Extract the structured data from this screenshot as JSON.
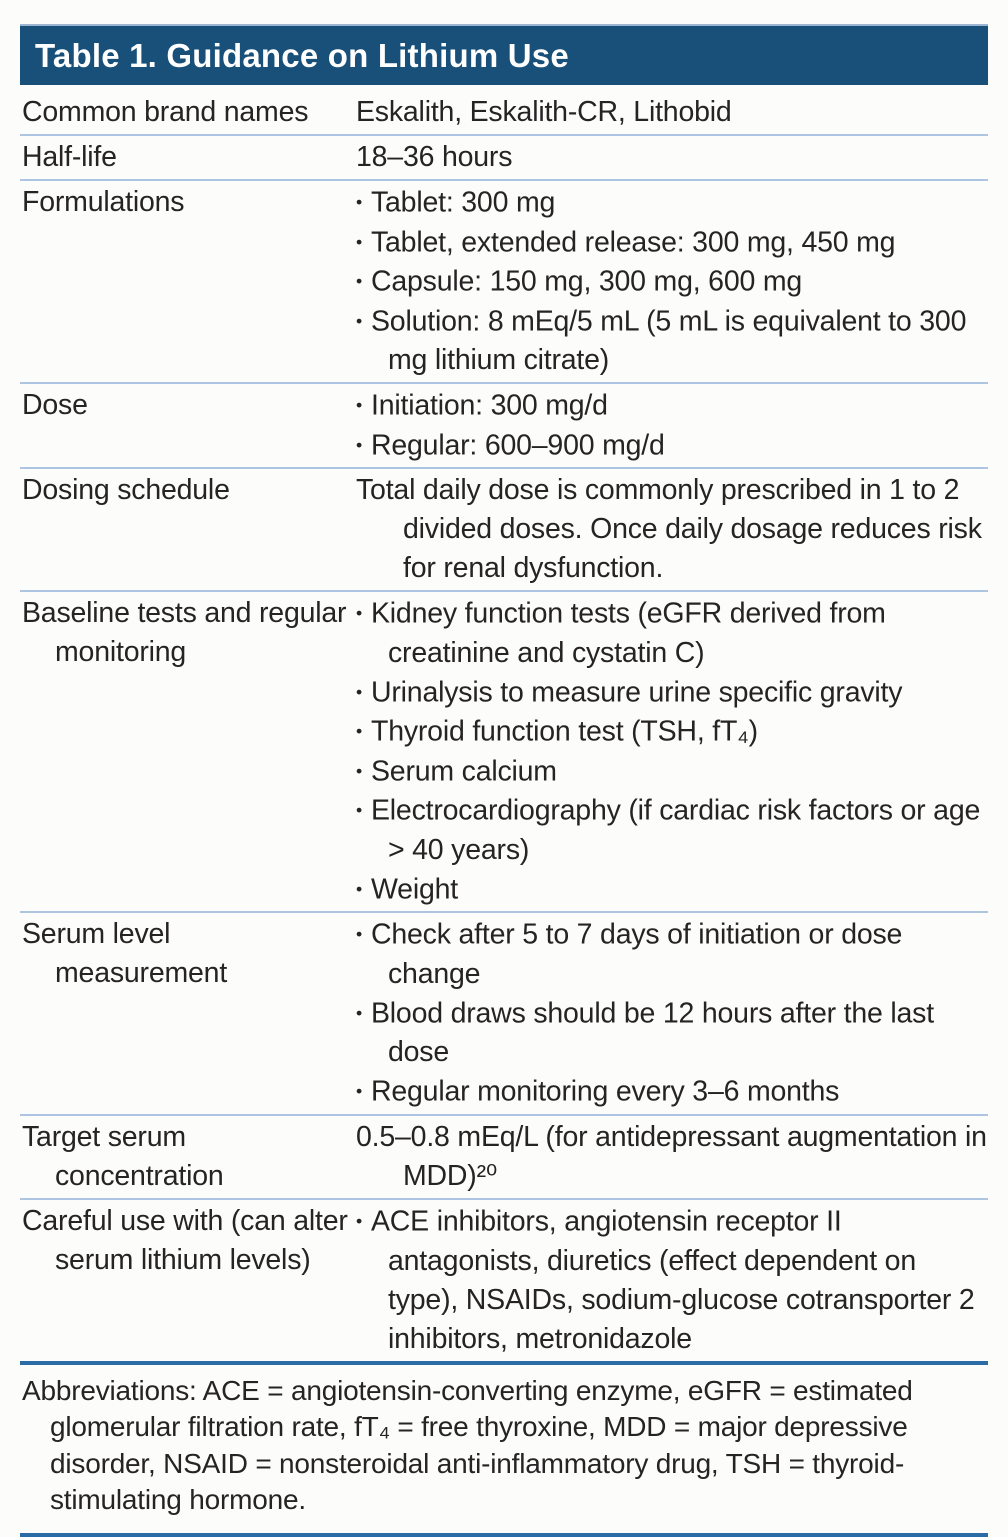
{
  "glyphs": {
    "bullet": "•"
  },
  "colors": {
    "header_bg": "#18507a",
    "header_text": "#ffffff",
    "body_text": "#262324",
    "row_divider": "#adc4e2",
    "section_rule": "#2c6ca6",
    "page_bg": "#fcfcfa"
  },
  "table": {
    "title": "Table 1. Guidance on Lithium Use",
    "rows": [
      {
        "label": "Common brand names",
        "type": "text",
        "text": "Eskalith, Eskalith-CR, Lithobid"
      },
      {
        "label": "Half-life",
        "type": "text",
        "text": "18–36 hours"
      },
      {
        "label": "Formulations",
        "type": "bullets",
        "items": [
          "Tablet: 300 mg",
          "Tablet, extended release: 300 mg, 450 mg",
          "Capsule: 150 mg, 300 mg, 600 mg",
          "Solution: 8 mEq/5 mL (5 mL is equivalent to 300 mg lithium citrate)"
        ]
      },
      {
        "label": "Dose",
        "type": "bullets",
        "items": [
          "Initiation: 300 mg/d",
          "Regular: 600–900 mg/d"
        ]
      },
      {
        "label": "Dosing schedule",
        "type": "text",
        "text": "Total daily dose is commonly prescribed in 1 to 2 divided doses. Once daily dosage reduces risk for renal dysfunction."
      },
      {
        "label": "Baseline tests and regular monitoring",
        "type": "bullets",
        "items": [
          "Kidney function tests (eGFR derived from creatinine and cystatin C)",
          "Urinalysis to measure urine specific gravity",
          "Thyroid function test (TSH, fT₄)",
          "Serum calcium",
          "Electrocardiography (if cardiac risk factors or age > 40 years)",
          "Weight"
        ]
      },
      {
        "label": "Serum level measurement",
        "type": "bullets",
        "items": [
          "Check after 5 to 7 days of initiation or dose change",
          "Blood draws should be 12 hours after the last dose",
          "Regular monitoring every 3–6 months"
        ]
      },
      {
        "label": "Target serum concentration",
        "type": "text",
        "text": "0.5–0.8 mEq/L (for antidepressant augmentation in MDD)²⁰"
      },
      {
        "label": "Careful use with (can alter serum lithium levels)",
        "type": "bullets",
        "items": [
          "ACE inhibitors, angiotensin receptor II antagonists, diuretics (effect dependent on type), NSAIDs, sodium-glucose cotransporter 2 inhibitors, metronidazole"
        ]
      }
    ],
    "footnote": "Abbreviations: ACE = angiotensin-converting enzyme, eGFR = estimated glomerular filtration rate, fT₄ = free thyroxine, MDD = major depressive disorder, NSAID = nonsteroidal anti-inflammatory drug, TSH = thyroid-stimulating hormone."
  }
}
